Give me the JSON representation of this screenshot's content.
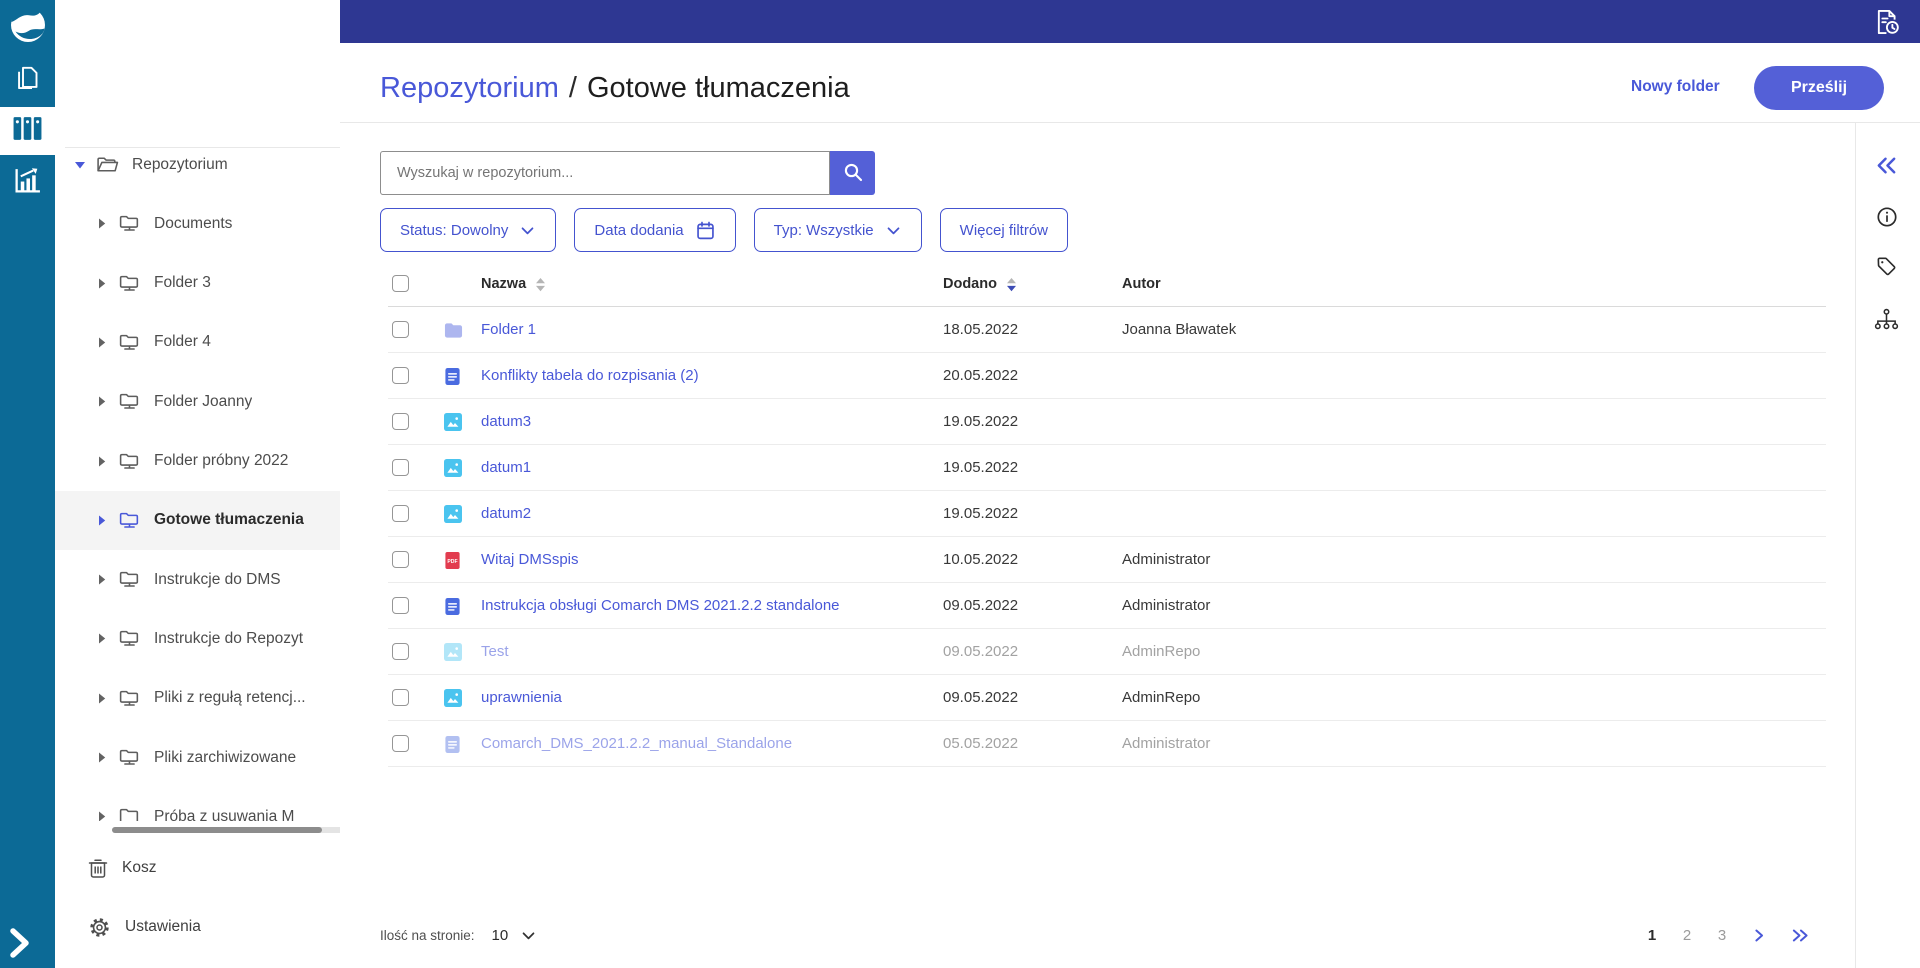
{
  "colors": {
    "rail": "#0c6a96",
    "topbar": "#2e3792",
    "accent": "#4958d8",
    "button": "#5460d7",
    "chip": "#4453cf",
    "sort_active": "#3d4cb5",
    "muted_text": "#a2a2a2"
  },
  "topbar": {
    "icon": "doc-clock"
  },
  "rail": {
    "items": [
      {
        "name": "logo",
        "icon": "logo-swirl",
        "active": false
      },
      {
        "name": "documents",
        "icon": "pages",
        "active": false
      },
      {
        "name": "repository",
        "icon": "binders",
        "active": true
      },
      {
        "name": "reports",
        "icon": "chart",
        "active": false
      }
    ],
    "expand_icon": "chevron-right-big"
  },
  "sidebar": {
    "tree": [
      {
        "label": "Repozytorium",
        "icon": "folder-open",
        "caret": "down",
        "level": 0,
        "selected": false
      },
      {
        "label": "Documents",
        "icon": "folder-shared",
        "caret": "right",
        "level": 1,
        "selected": false
      },
      {
        "label": "Folder 3",
        "icon": "folder-shared",
        "caret": "right",
        "level": 1,
        "selected": false
      },
      {
        "label": "Folder 4",
        "icon": "folder-shared",
        "caret": "right",
        "level": 1,
        "selected": false
      },
      {
        "label": "Folder Joanny",
        "icon": "folder-shared",
        "caret": "right",
        "level": 1,
        "selected": false
      },
      {
        "label": "Folder próbny 2022",
        "icon": "folder-shared",
        "caret": "right",
        "level": 1,
        "selected": false
      },
      {
        "label": "Gotowe tłumaczenia",
        "icon": "folder-shared",
        "caret": "right",
        "level": 1,
        "selected": true
      },
      {
        "label": "Instrukcje do DMS",
        "icon": "folder-shared",
        "caret": "right",
        "level": 1,
        "selected": false
      },
      {
        "label": "Instrukcje do Repozyt",
        "icon": "folder-shared",
        "caret": "right",
        "level": 1,
        "selected": false
      },
      {
        "label": "Pliki z regułą retencj...",
        "icon": "folder-shared",
        "caret": "right",
        "level": 1,
        "selected": false
      },
      {
        "label": "Pliki zarchiwizowane",
        "icon": "folder-shared",
        "caret": "right",
        "level": 1,
        "selected": false
      },
      {
        "label": "Próba z usuwania M",
        "icon": "folder-plain",
        "caret": "right",
        "level": 1,
        "selected": false
      }
    ],
    "footer": [
      {
        "label": "Kosz",
        "icon": "trash"
      },
      {
        "label": "Ustawienia",
        "icon": "gear"
      }
    ]
  },
  "header": {
    "breadcrumb_root": "Repozytorium",
    "breadcrumb_separator": "/",
    "breadcrumb_current": "Gotowe tłumaczenia",
    "new_folder_label": "Nowy folder",
    "upload_label": "Prześlij"
  },
  "search": {
    "placeholder": "Wyszukaj w repozytorium...",
    "value": "",
    "icon": "magnifier"
  },
  "filters": [
    {
      "label": "Status: Dowolny",
      "icon": "chevron-down"
    },
    {
      "label": "Data dodania",
      "icon": "calendar"
    },
    {
      "label": "Typ: Wszystkie",
      "icon": "chevron-down"
    },
    {
      "label": "Więcej filtrów",
      "icon": ""
    }
  ],
  "table": {
    "columns": [
      {
        "label": "Nazwa",
        "sort": "inactive"
      },
      {
        "label": "Dodano",
        "sort": "desc"
      },
      {
        "label": "Autor",
        "sort": ""
      }
    ],
    "rows": [
      {
        "name": "Folder 1",
        "type": "folder",
        "date": "18.05.2022",
        "author": "Joanna Bławatek",
        "muted": false,
        "icon_faded": false
      },
      {
        "name": "Konflikty tabela do rozpisania (2)",
        "type": "doc",
        "date": "20.05.2022",
        "author": "",
        "muted": false,
        "icon_faded": false
      },
      {
        "name": "datum3",
        "type": "image",
        "date": "19.05.2022",
        "author": "",
        "muted": false,
        "icon_faded": false
      },
      {
        "name": "datum1",
        "type": "image",
        "date": "19.05.2022",
        "author": "",
        "muted": false,
        "icon_faded": false
      },
      {
        "name": "datum2",
        "type": "image",
        "date": "19.05.2022",
        "author": "",
        "muted": false,
        "icon_faded": false
      },
      {
        "name": "Witaj DMSspis",
        "type": "pdf",
        "date": "10.05.2022",
        "author": "Administrator",
        "muted": false,
        "icon_faded": false
      },
      {
        "name": "Instrukcja obsługi Comarch DMS 2021.2.2 standalone",
        "type": "doc",
        "date": "09.05.2022",
        "author": "Administrator",
        "muted": false,
        "icon_faded": false
      },
      {
        "name": "Test",
        "type": "image",
        "date": "09.05.2022",
        "author": "AdminRepo",
        "muted": true,
        "icon_faded": true
      },
      {
        "name": "uprawnienia",
        "type": "image",
        "date": "09.05.2022",
        "author": "AdminRepo",
        "muted": false,
        "icon_faded": false
      },
      {
        "name": "Comarch_DMS_2021.2.2_manual_Standalone",
        "type": "doc",
        "date": "05.05.2022",
        "author": "Administrator",
        "muted": true,
        "icon_faded": true
      }
    ]
  },
  "pagination": {
    "per_page_label": "Ilość na stronie:",
    "per_page_value": "10",
    "pages": [
      "1",
      "2",
      "3"
    ],
    "current_page": "1",
    "next_icon": "chevron-right-small",
    "last_icon": "double-chevron-right"
  },
  "right_panel": {
    "icons": [
      {
        "name": "collapse-panel",
        "icon": "double-chevron-left"
      },
      {
        "name": "info",
        "icon": "info-circle"
      },
      {
        "name": "tags",
        "icon": "tag"
      },
      {
        "name": "structure",
        "icon": "sitemap"
      }
    ]
  }
}
